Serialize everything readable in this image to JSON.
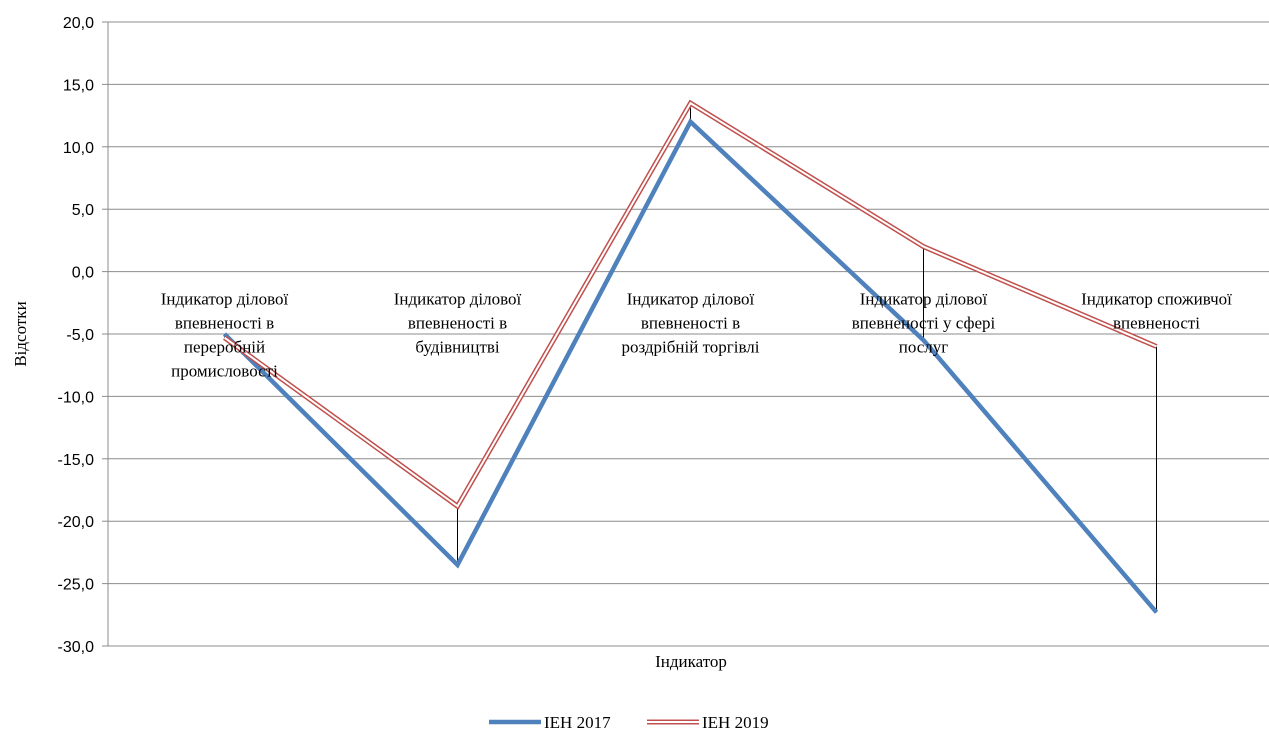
{
  "chart_data": {
    "type": "line",
    "categories": [
      [
        "Індикатор ділової",
        "впевненості в",
        "переробній",
        "промисловості"
      ],
      [
        "Індикатор ділової",
        "впевненості в",
        "будівництві"
      ],
      [
        "Індикатор ділової",
        "впевненості в",
        "роздрібній торгівлі"
      ],
      [
        "Індикатор ділової",
        "впевненості у сфері",
        "послуг"
      ],
      [
        "Індикатор споживчої",
        "впевненості"
      ]
    ],
    "series": [
      {
        "name": "IЕН 2017",
        "values": [
          -5.0,
          -23.5,
          12.0,
          -5.5,
          -27.3
        ],
        "color": "#4f81bd",
        "style": "solid"
      },
      {
        "name": "IЕН 2019",
        "values": [
          -5.3,
          -18.8,
          13.5,
          2.0,
          -6.0
        ],
        "color": "#c0504d",
        "style": "double"
      }
    ],
    "xlabel": "Індикатор",
    "ylabel": "Відсотки",
    "ylim": [
      -30,
      20
    ],
    "yticks": [
      "20,0",
      "15,0",
      "10,0",
      "5,0",
      "0,0",
      "-5,0",
      "-10,0",
      "-15,0",
      "-20,0",
      "-25,0",
      "-30,0"
    ],
    "grid": true,
    "hi_lo_lines": true,
    "legend_position": "bottom"
  }
}
